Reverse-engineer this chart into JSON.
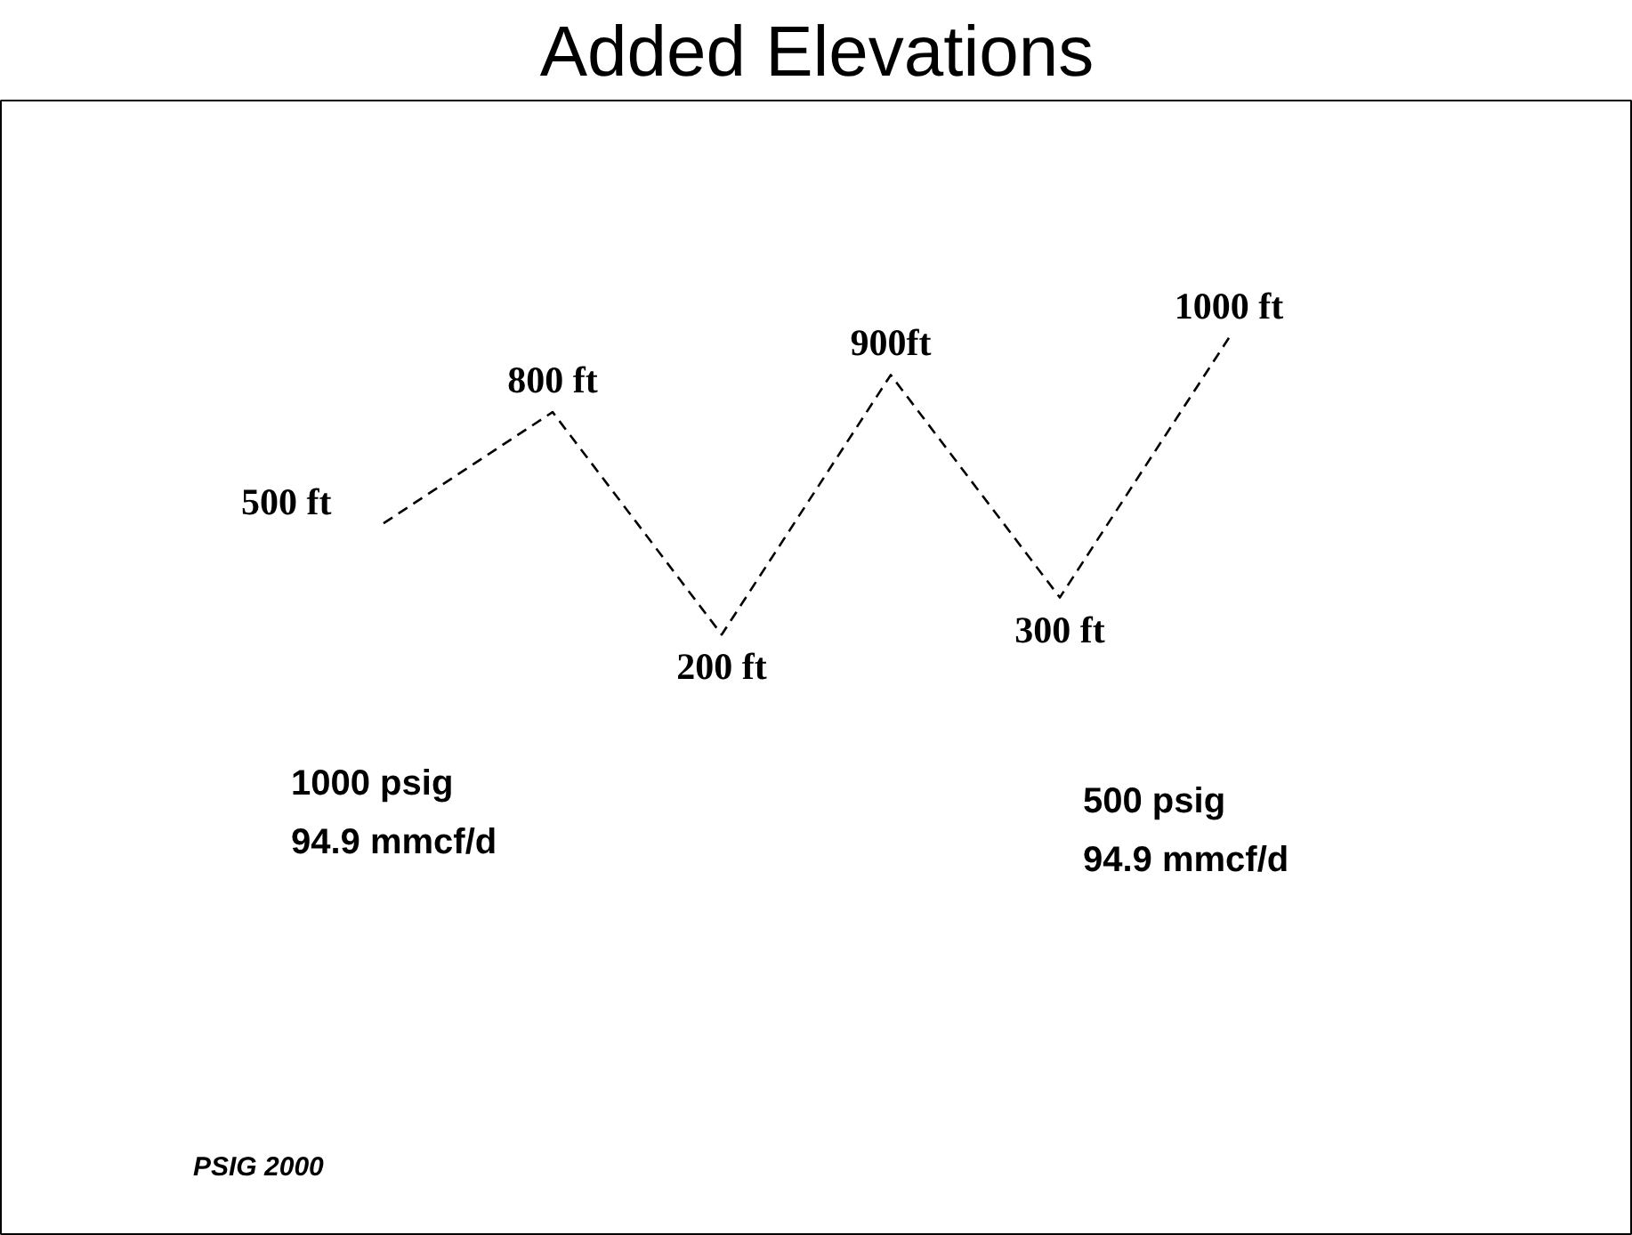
{
  "chart_data": {
    "type": "line",
    "title": "Added Elevations",
    "categories": [
      null,
      null,
      null,
      null,
      null,
      null
    ],
    "series": [
      {
        "color": "#000000",
        "values": [
          500,
          800,
          200,
          900,
          300,
          1000
        ],
        "value_labels": [
          "500 ft",
          "800 ft",
          "200 ft",
          "900ft",
          "300 ft",
          "1000 ft"
        ]
      }
    ],
    "line_style": "dashed",
    "annotations": [
      "1000 psig\n94.9 mmcf/d",
      "500 psig\n94.9 mmcf/d",
      "PSIG 2000"
    ]
  }
}
